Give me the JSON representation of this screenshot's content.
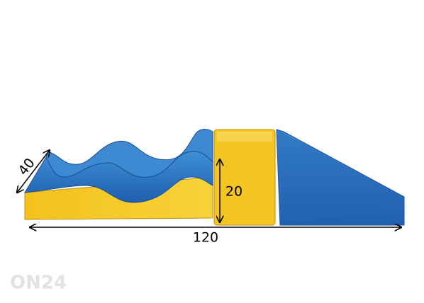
{
  "dimensions": {
    "depth": 40,
    "height": 20,
    "length": 120
  },
  "watermark": "ON24"
}
